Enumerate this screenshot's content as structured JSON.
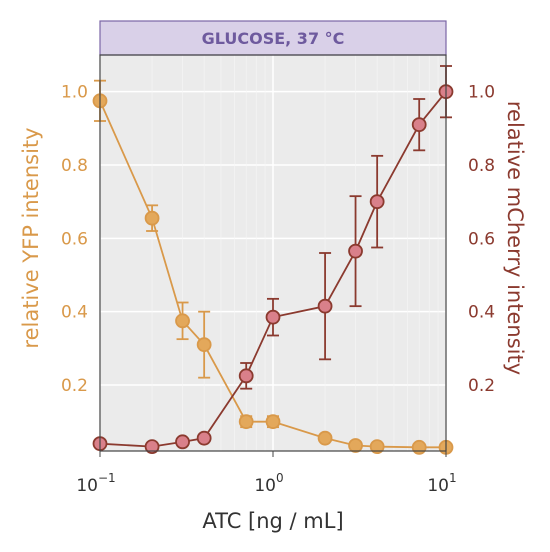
{
  "chart_data": {
    "type": "scatter",
    "panel_title": "GLUCOSE, 37 °C",
    "xlabel": "ATC [ng / mL]",
    "xscale": "log",
    "xlim": [
      0.1,
      10
    ],
    "x_ticks": [
      {
        "value": 0.1,
        "base": "10",
        "exp": "−1"
      },
      {
        "value": 1,
        "base": "10",
        "exp": "0"
      },
      {
        "value": 10,
        "base": "10",
        "exp": "1"
      }
    ],
    "ylim": [
      0.02,
      1.1
    ],
    "y_ticks": [
      0.2,
      0.4,
      0.6,
      0.8,
      1.0
    ],
    "y_tick_labels": [
      "0.2",
      "0.4",
      "0.6",
      "0.8",
      "1.0"
    ],
    "ylabel_left": "relative YFP intensity",
    "ylabel_right": "relative mCherry intensity",
    "grid": true,
    "series": [
      {
        "axis": "left",
        "color": "#E3A85B",
        "edge_color": "#D9994A",
        "x": [
          0.1,
          0.2,
          0.3,
          0.4,
          0.7,
          1,
          2,
          3,
          4,
          7,
          10
        ],
        "y": [
          0.975,
          0.655,
          0.375,
          0.31,
          0.1,
          0.1,
          0.055,
          0.035,
          0.032,
          0.03,
          0.03
        ],
        "err": [
          0.055,
          0.035,
          0.05,
          0.09,
          0.015,
          0.015,
          0,
          0,
          0,
          0,
          0
        ]
      },
      {
        "axis": "right",
        "color": "#D9808A",
        "edge_color": "#8B3A2F",
        "x": [
          0.1,
          0.2,
          0.3,
          0.4,
          0.7,
          1,
          2,
          3,
          4,
          7,
          10
        ],
        "y": [
          0.04,
          0.032,
          0.045,
          0.055,
          0.225,
          0.385,
          0.415,
          0.565,
          0.7,
          0.91,
          1.0
        ],
        "err": [
          0,
          0,
          0,
          0,
          0.035,
          0.05,
          0.145,
          0.15,
          0.125,
          0.07,
          0.07
        ]
      }
    ]
  }
}
